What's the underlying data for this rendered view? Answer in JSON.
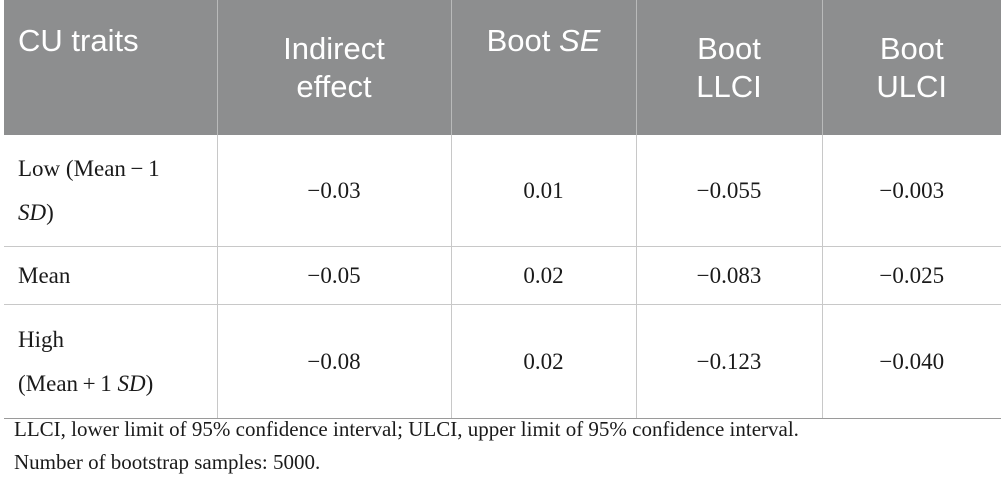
{
  "table": {
    "headers": [
      {
        "line1": "CU traits",
        "line2": ""
      },
      {
        "line1": "Indirect",
        "line2": "effect"
      },
      {
        "line1_a": "Boot ",
        "line1_b": "SE"
      },
      {
        "line1": "Boot",
        "line2": "LLCI"
      },
      {
        "line1": "Boot",
        "line2": "ULCI"
      }
    ],
    "rows": [
      {
        "label_line1": "Low (Mean − 1",
        "label_line2_a": "SD",
        "label_line2_b": ")",
        "indirect_effect": "−0.03",
        "boot_se": "0.01",
        "boot_llci": "−0.055",
        "boot_ulci": "−0.003"
      },
      {
        "label": "Mean",
        "indirect_effect": "−0.05",
        "boot_se": "0.02",
        "boot_llci": "−0.083",
        "boot_ulci": "−0.025"
      },
      {
        "label_line1": "High",
        "label_line2_a": "(Mean + 1 ",
        "label_line2_b": "SD",
        "label_line2_c": ")",
        "indirect_effect": "−0.08",
        "boot_se": "0.02",
        "boot_llci": "−0.123",
        "boot_ulci": "−0.040"
      }
    ]
  },
  "footnote": {
    "line1": "LLCI, lower limit of 95% confidence interval; ULCI, upper limit of 95% confidence interval.",
    "line2": "Number of bootstrap samples: 5000."
  }
}
